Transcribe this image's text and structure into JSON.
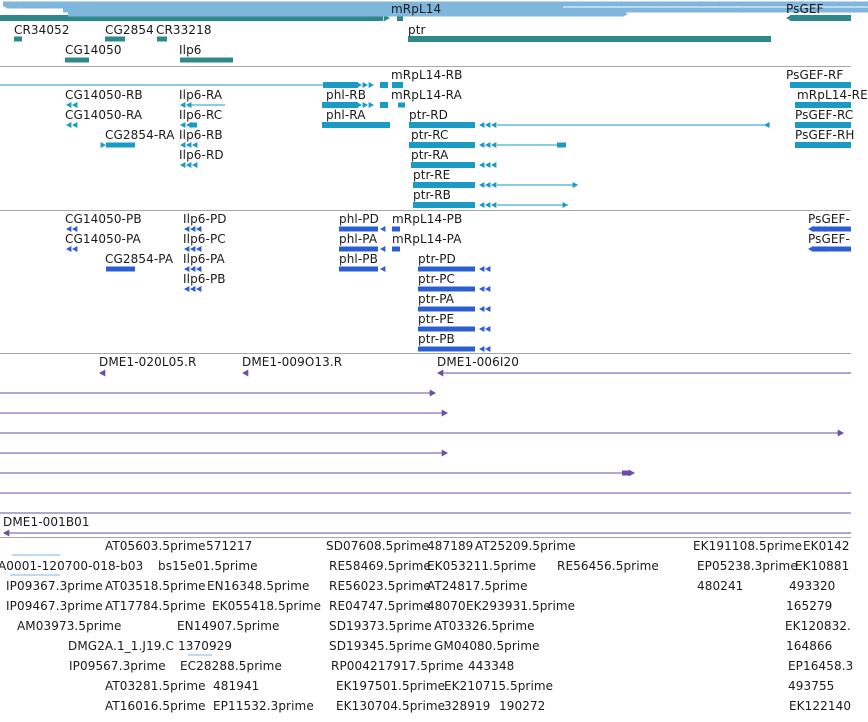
{
  "colors": {
    "gene": "#2e8a8a",
    "mrna": "#1a9bc4",
    "cds": "#2b5fd1",
    "est": "#6a4fa8",
    "read": "#7fb6dc",
    "separator": "#a8a8a8"
  },
  "tracks": {
    "genes": {
      "labels": [
        "CR34052",
        "CG2854",
        "CR33218",
        "CG14050",
        "Ilp6",
        "mRpL14",
        "ptr",
        "PsGEF"
      ]
    },
    "transcripts": {
      "labels": [
        "mRpL14-RB",
        "CG14050-RB",
        "Ilp6-RA",
        "phl-RB",
        "mRpL14-RA",
        "CG14050-RA",
        "Ilp6-RC",
        "phl-RA",
        "ptr-RD",
        "CG2854-RA",
        "Ilp6-RB",
        "ptr-RC",
        "Ilp6-RD",
        "ptr-RA",
        "ptr-RE",
        "ptr-RB",
        "PsGEF-RF",
        "mRpL14-RE",
        "PsGEF-RC",
        "PsGEF-RH"
      ]
    },
    "proteins": {
      "labels": [
        "CG14050-PB",
        "Ilp6-PD",
        "phl-PD",
        "mRpL14-PB",
        "CG14050-PA",
        "Ilp6-PC",
        "phl-PA",
        "mRpL14-PA",
        "CG2854-PA",
        "Ilp6-PA",
        "phl-PB",
        "ptr-PD",
        "Ilp6-PB",
        "ptr-PC",
        "ptr-PA",
        "ptr-PE",
        "ptr-PB",
        "PsGEF-",
        "PsGEF-"
      ]
    },
    "clones": {
      "labels": [
        "DME1-020L05.R",
        "DME1-009O13.R",
        "DME1-006I20",
        "DME1-001B01"
      ]
    },
    "ests": {
      "labels": [
        "AT05603.5prime",
        "571217",
        "SD07608.5prime",
        "487189",
        "AT25209.5prime",
        "EK191108.5prime",
        "EK0142",
        "A0001-120700-018-b03",
        "bs15e01.5prime",
        "RE58469.5prime",
        "EK053211.5prime",
        "RE56456.5prime",
        "EP05238.3prime",
        "EK10881",
        "IP09367.3prime",
        "AT03518.5prime",
        "EN16348.5prime",
        "RE56023.5prime",
        "AT24817.5prime",
        "480241",
        "493320",
        "IP09467.3prime",
        "AT17784.5prime",
        "EK055418.5prime",
        "RE04747.5prime",
        "48070",
        "EK293931.5prime",
        "165279",
        "AM03973.5prime",
        "EN14907.5prime",
        "SD19373.5prime",
        "AT03326.5prime",
        "EK120832.",
        "DMG2A.1_1.J19.C",
        "1370929",
        "SD19345.5prime",
        "GM04080.5prime",
        "164866",
        "IP09567.3prime",
        "EC28288.5prime",
        "RP004217917.5prime",
        "443348",
        "EP16458.3",
        "AT03281.5prime",
        "481941",
        "EK197501.5prime",
        "EK210715.5prime",
        "493755",
        "AT16016.5prime",
        "EP11532.3prime",
        "EK130704.5prime",
        "328919",
        "190272",
        "EK122140"
      ]
    }
  }
}
